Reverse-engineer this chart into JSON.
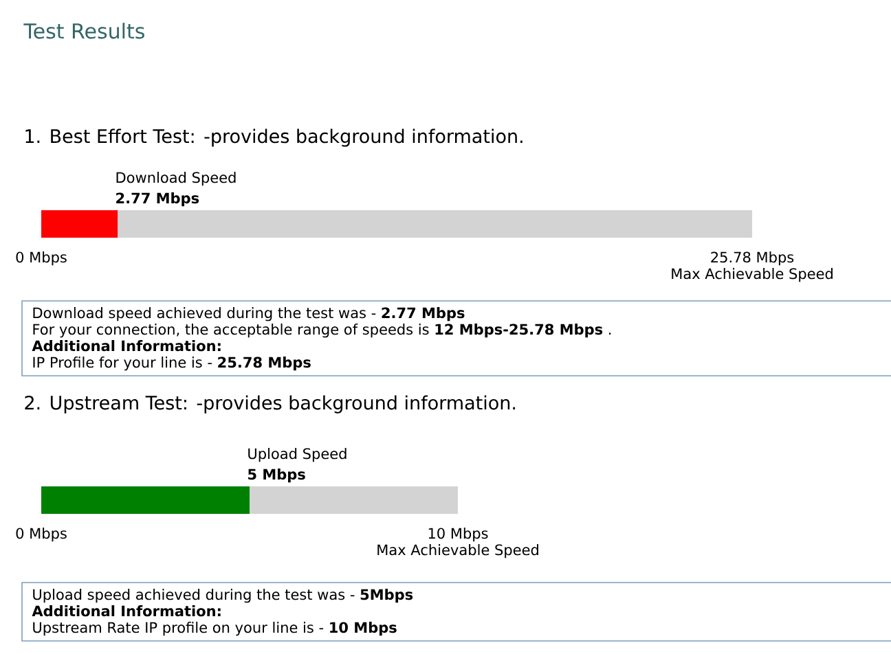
{
  "chart_data": [
    {
      "type": "bar",
      "orientation": "horizontal",
      "title": "Test Results",
      "subtitle": "1. Best Effort Test: -provides background information.",
      "categories": [
        "Download Speed"
      ],
      "values": [
        2.77
      ],
      "value_labels": [
        "2.77 Mbps"
      ],
      "color": "#ff0000",
      "xlim": [
        0,
        25.78
      ],
      "xticks": [
        {
          "value": 0,
          "label": "0 Mbps"
        },
        {
          "value": 25.78,
          "label": "25.78 Mbps"
        }
      ],
      "xlabel": "Max Achievable Speed",
      "bands": [
        {
          "axis": "x",
          "from": 0,
          "to": 25.78,
          "color": "#d3d3d3"
        }
      ],
      "annotations": [
        "Download speed achieved during the test was - **2.77 Mbps**",
        "For your connection, the acceptable range of speeds is **12 Mbps-25.78 Mbps** .",
        "**Additional Information:**",
        "IP Profile for your line is - **25.78 Mbps**"
      ]
    },
    {
      "type": "bar",
      "orientation": "horizontal",
      "title": "2. Upstream Test: -provides background information.",
      "categories": [
        "Upload Speed"
      ],
      "values": [
        5
      ],
      "value_labels": [
        "5 Mbps"
      ],
      "color": "#008000",
      "xlim": [
        0,
        10
      ],
      "xticks": [
        {
          "value": 0,
          "label": "0 Mbps"
        },
        {
          "value": 10,
          "label": "10 Mbps"
        }
      ],
      "xlabel": "Max Achievable Speed",
      "bands": [
        {
          "axis": "x",
          "from": 0,
          "to": 10,
          "color": "#d3d3d3"
        }
      ],
      "annotations": [
        "Upload speed achieved during the test was - **5Mbps**",
        "**Additional Information:**",
        "Upstream Rate IP profile on your line is - **10 Mbps**"
      ]
    }
  ]
}
